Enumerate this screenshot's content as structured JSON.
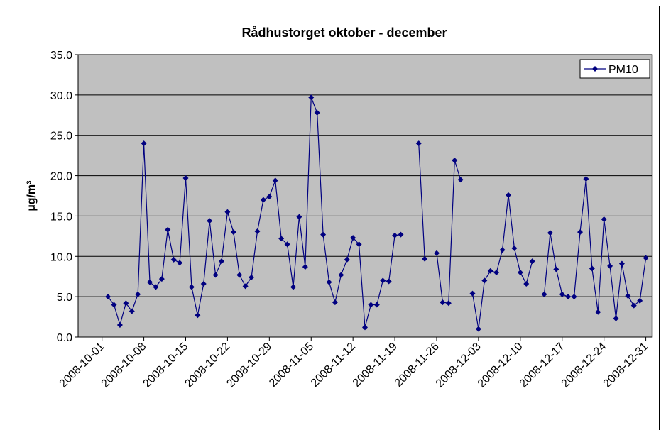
{
  "chart_data": {
    "type": "line",
    "title": "Rådhustorget oktober - december",
    "ylabel": "µg/m³",
    "x": [
      "2008-10-01",
      "2008-10-02",
      "2008-10-03",
      "2008-10-04",
      "2008-10-05",
      "2008-10-06",
      "2008-10-07",
      "2008-10-08",
      "2008-10-09",
      "2008-10-10",
      "2008-10-11",
      "2008-10-12",
      "2008-10-13",
      "2008-10-14",
      "2008-10-15",
      "2008-10-16",
      "2008-10-17",
      "2008-10-18",
      "2008-10-19",
      "2008-10-20",
      "2008-10-21",
      "2008-10-22",
      "2008-10-23",
      "2008-10-24",
      "2008-10-25",
      "2008-10-26",
      "2008-10-27",
      "2008-10-28",
      "2008-10-29",
      "2008-10-30",
      "2008-10-31",
      "2008-11-01",
      "2008-11-02",
      "2008-11-03",
      "2008-11-04",
      "2008-11-05",
      "2008-11-06",
      "2008-11-07",
      "2008-11-08",
      "2008-11-09",
      "2008-11-10",
      "2008-11-11",
      "2008-11-12",
      "2008-11-13",
      "2008-11-14",
      "2008-11-15",
      "2008-11-16",
      "2008-11-17",
      "2008-11-18",
      "2008-11-19",
      "2008-11-20",
      "2008-11-21",
      "2008-11-22",
      "2008-11-23",
      "2008-11-24",
      "2008-11-25",
      "2008-11-26",
      "2008-11-27",
      "2008-11-28",
      "2008-11-29",
      "2008-11-30",
      "2008-12-01",
      "2008-12-02",
      "2008-12-03",
      "2008-12-04",
      "2008-12-05",
      "2008-12-06",
      "2008-12-07",
      "2008-12-08",
      "2008-12-09",
      "2008-12-10",
      "2008-12-11",
      "2008-12-12",
      "2008-12-13",
      "2008-12-14",
      "2008-12-15",
      "2008-12-16",
      "2008-12-17",
      "2008-12-18",
      "2008-12-19",
      "2008-12-20",
      "2008-12-21",
      "2008-12-22",
      "2008-12-23",
      "2008-12-24",
      "2008-12-25",
      "2008-12-26",
      "2008-12-27",
      "2008-12-28",
      "2008-12-29",
      "2008-12-30",
      "2008-12-31"
    ],
    "series": [
      {
        "name": "PM10",
        "color": "#000080",
        "values": [
          null,
          5.0,
          4.0,
          1.5,
          4.2,
          3.2,
          5.3,
          24.0,
          6.8,
          6.2,
          7.2,
          13.3,
          9.6,
          9.2,
          19.7,
          6.2,
          2.7,
          6.6,
          14.4,
          7.7,
          9.4,
          15.5,
          13.0,
          7.7,
          6.3,
          7.4,
          13.1,
          17.0,
          17.4,
          19.4,
          12.2,
          11.5,
          6.2,
          14.9,
          8.7,
          29.7,
          27.8,
          12.7,
          6.8,
          4.3,
          7.7,
          9.6,
          12.3,
          11.5,
          1.2,
          4.0,
          4.0,
          7.0,
          6.9,
          12.6,
          12.7,
          null,
          null,
          24.0,
          9.7,
          null,
          10.4,
          4.3,
          4.2,
          21.9,
          19.5,
          null,
          5.4,
          1.0,
          7.0,
          8.2,
          8.0,
          10.8,
          17.6,
          11.0,
          8.0,
          6.6,
          9.4,
          null,
          5.3,
          12.9,
          8.4,
          5.3,
          5.0,
          5.0,
          13.0,
          19.6,
          8.5,
          3.1,
          14.6,
          8.8,
          2.3,
          9.1,
          5.1,
          3.9,
          4.5,
          9.8
        ]
      }
    ],
    "xlim": [
      "2008-09-27",
      "2009-01-01"
    ],
    "xticks": [
      "2008-10-01",
      "2008-10-08",
      "2008-10-15",
      "2008-10-22",
      "2008-10-29",
      "2008-11-05",
      "2008-11-12",
      "2008-11-19",
      "2008-11-26",
      "2008-12-03",
      "2008-12-10",
      "2008-12-17",
      "2008-12-24",
      "2008-12-31"
    ],
    "ylim": [
      0,
      35
    ],
    "yticks": [
      {
        "value": 0,
        "label": "0.0"
      },
      {
        "value": 5,
        "label": "5.0"
      },
      {
        "value": 10,
        "label": "10.0"
      },
      {
        "value": 15,
        "label": "15.0"
      },
      {
        "value": 20,
        "label": "20.0"
      },
      {
        "value": 25,
        "label": "25.0"
      },
      {
        "value": 30,
        "label": "30.0"
      },
      {
        "value": 35,
        "label": "35.0"
      }
    ],
    "grid": true,
    "legend": "upper right"
  }
}
